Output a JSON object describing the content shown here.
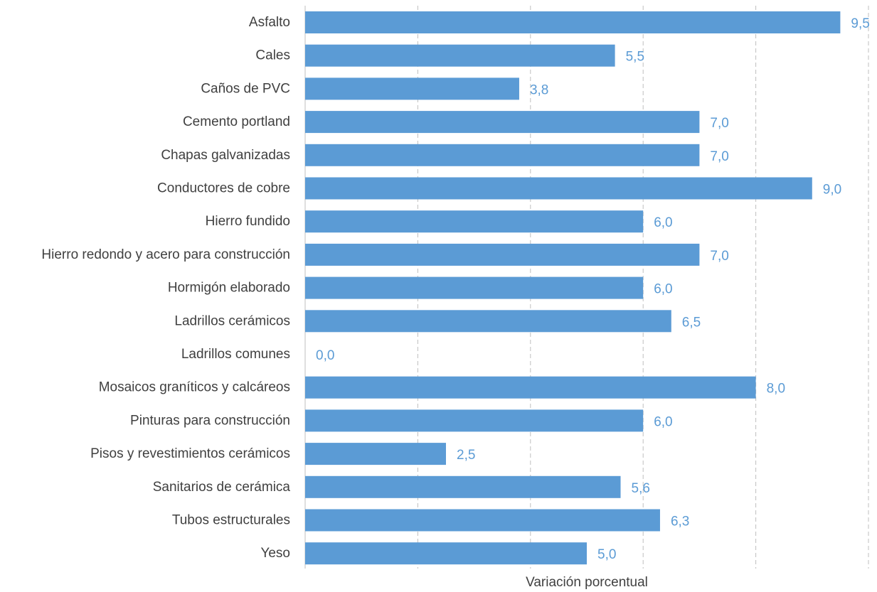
{
  "chart_data": {
    "type": "bar",
    "orientation": "horizontal",
    "categories": [
      "Asfalto",
      "Cales",
      "Caños de PVC",
      "Cemento portland",
      "Chapas galvanizadas",
      "Conductores de cobre",
      "Hierro fundido",
      "Hierro redondo y acero para construcción",
      "Hormigón elaborado",
      "Ladrillos cerámicos",
      "Ladrillos comunes",
      "Mosaicos graníticos y calcáreos",
      "Pinturas para construcción",
      "Pisos y revestimientos cerámicos",
      "Sanitarios de cerámica",
      "Tubos estructurales",
      "Yeso"
    ],
    "values": [
      9.5,
      5.5,
      3.8,
      7.0,
      7.0,
      9.0,
      6.0,
      7.0,
      6.0,
      6.5,
      0.0,
      8.0,
      6.0,
      2.5,
      5.6,
      6.3,
      5.0
    ],
    "labels": [
      "9,5",
      "5,5",
      "3,8",
      "7,0",
      "7,0",
      "9,0",
      "6,0",
      "7,0",
      "6,0",
      "6,5",
      "0,0",
      "8,0",
      "6,0",
      "2,5",
      "5,6",
      "6,3",
      "5,0"
    ],
    "title": "",
    "xlabel": "Variación porcentual",
    "ylabel": "",
    "xlim": [
      0,
      10
    ],
    "grid": true,
    "grid_style": "dashed vertical",
    "tick_labels_shown": false,
    "legend": "none",
    "colors": {
      "bar": "#5b9bd5",
      "data_label": "#5b9bd5",
      "category_label": "#404040",
      "grid": "#bfbfbf"
    }
  }
}
